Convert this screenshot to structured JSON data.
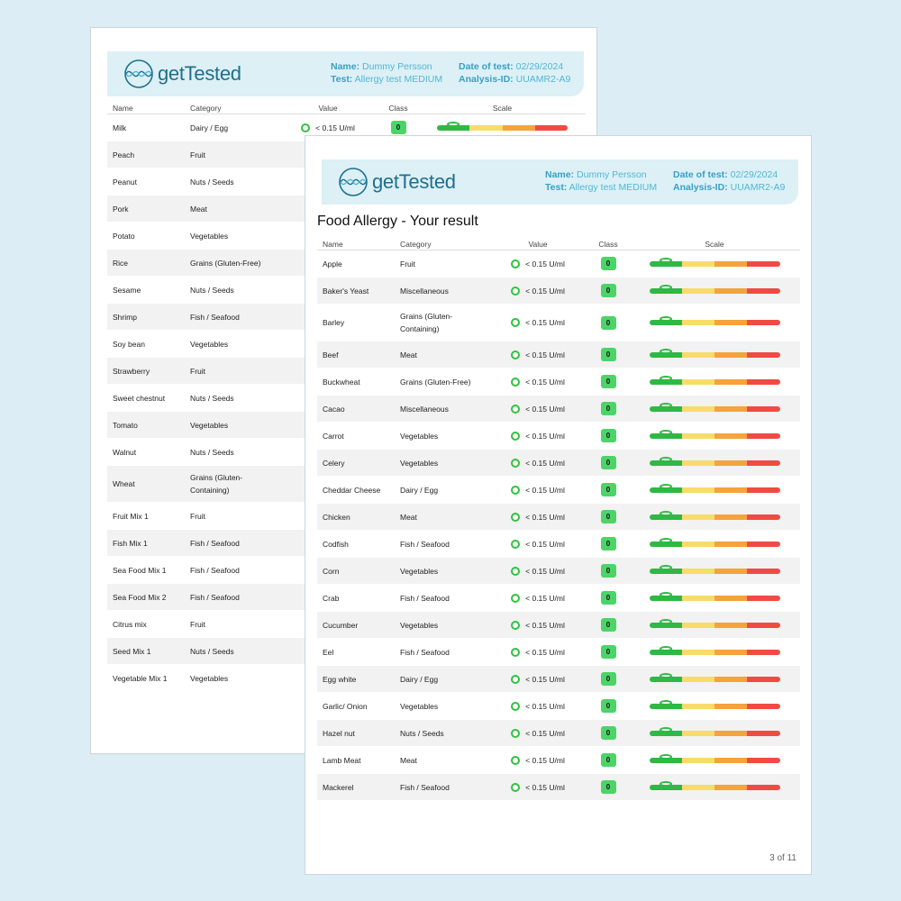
{
  "brand": "getTested",
  "header": {
    "name_label": "Name:",
    "name": "Dummy Persson",
    "test_label": "Test:",
    "test": "Allergy test MEDIUM",
    "date_label": "Date of test:",
    "date": "02/29/2024",
    "id_label": "Analysis-ID:",
    "id": "UUAMR2-A9"
  },
  "columns": [
    "Name",
    "Category",
    "Value",
    "Class",
    "Scale"
  ],
  "colors": {
    "green": "#2fc33f",
    "orange": "#f2a23a",
    "yellow": "#f7dc6a",
    "red": "#f14a44",
    "header_bg": "#dcf0f6"
  },
  "back_page": {
    "rows": [
      {
        "name": "Milk",
        "category": "Dairy / Egg",
        "status": "green",
        "value": "< 0.15 U/ml",
        "class": "0",
        "scale_level": 0
      },
      {
        "name": "Peach",
        "category": "Fruit",
        "status": "green"
      },
      {
        "name": "Peanut",
        "category": "Nuts / Seeds",
        "status": "green"
      },
      {
        "name": "Pork",
        "category": "Meat",
        "status": "green"
      },
      {
        "name": "Potato",
        "category": "Vegetables",
        "status": "green"
      },
      {
        "name": "Rice",
        "category": "Grains (Gluten-Free)",
        "status": "green"
      },
      {
        "name": "Sesame",
        "category": "Nuts / Seeds",
        "status": "green"
      },
      {
        "name": "Shrimp",
        "category": "Fish / Seafood",
        "status": "green"
      },
      {
        "name": "Soy bean",
        "category": "Vegetables",
        "status": "green"
      },
      {
        "name": "Strawberry",
        "category": "Fruit",
        "status": "green"
      },
      {
        "name": "Sweet chestnut",
        "category": "Nuts / Seeds",
        "status": "green"
      },
      {
        "name": "Tomato",
        "category": "Vegetables",
        "status": "orange"
      },
      {
        "name": "Walnut",
        "category": "Nuts / Seeds",
        "status": "green"
      },
      {
        "name": "Wheat",
        "category": "Grains (Gluten-Containing)",
        "status": "green"
      },
      {
        "name": "Fruit Mix 1",
        "category": "Fruit",
        "status": "green"
      },
      {
        "name": "Fish Mix 1",
        "category": "Fish / Seafood",
        "status": "green"
      },
      {
        "name": "Sea Food Mix 1",
        "category": "Fish / Seafood",
        "status": "green"
      },
      {
        "name": "Sea Food Mix 2",
        "category": "Fish / Seafood",
        "status": "green"
      },
      {
        "name": "Citrus mix",
        "category": "Fruit",
        "status": "green"
      },
      {
        "name": "Seed Mix 1",
        "category": "Nuts / Seeds",
        "status": "green"
      },
      {
        "name": "Vegetable Mix 1",
        "category": "Vegetables",
        "status": "green"
      }
    ]
  },
  "front_page": {
    "title": "Food Allergy - Your result",
    "page_number": "3 of 11",
    "rows": [
      {
        "name": "Apple",
        "category": "Fruit",
        "status": "green",
        "value": "< 0.15 U/ml",
        "class": "0",
        "scale_level": 0
      },
      {
        "name": "Baker's Yeast",
        "category": "Miscellaneous",
        "status": "green",
        "value": "< 0.15 U/ml",
        "class": "0",
        "scale_level": 0
      },
      {
        "name": "Barley",
        "category": "Grains (Gluten-Containing)",
        "status": "green",
        "value": "< 0.15 U/ml",
        "class": "0",
        "scale_level": 0
      },
      {
        "name": "Beef",
        "category": "Meat",
        "status": "green",
        "value": "< 0.15 U/ml",
        "class": "0",
        "scale_level": 0
      },
      {
        "name": "Buckwheat",
        "category": "Grains (Gluten-Free)",
        "status": "green",
        "value": "< 0.15 U/ml",
        "class": "0",
        "scale_level": 0
      },
      {
        "name": "Cacao",
        "category": "Miscellaneous",
        "status": "green",
        "value": "< 0.15 U/ml",
        "class": "0",
        "scale_level": 0
      },
      {
        "name": "Carrot",
        "category": "Vegetables",
        "status": "green",
        "value": "< 0.15 U/ml",
        "class": "0",
        "scale_level": 0
      },
      {
        "name": "Celery",
        "category": "Vegetables",
        "status": "green",
        "value": "< 0.15 U/ml",
        "class": "0",
        "scale_level": 0
      },
      {
        "name": "Cheddar Cheese",
        "category": "Dairy / Egg",
        "status": "green",
        "value": "< 0.15 U/ml",
        "class": "0",
        "scale_level": 0
      },
      {
        "name": "Chicken",
        "category": "Meat",
        "status": "green",
        "value": "< 0.15 U/ml",
        "class": "0",
        "scale_level": 0
      },
      {
        "name": "Codfish",
        "category": "Fish / Seafood",
        "status": "green",
        "value": "< 0.15 U/ml",
        "class": "0",
        "scale_level": 0
      },
      {
        "name": "Corn",
        "category": "Vegetables",
        "status": "green",
        "value": "< 0.15 U/ml",
        "class": "0",
        "scale_level": 0
      },
      {
        "name": "Crab",
        "category": "Fish / Seafood",
        "status": "green",
        "value": "< 0.15 U/ml",
        "class": "0",
        "scale_level": 0
      },
      {
        "name": "Cucumber",
        "category": "Vegetables",
        "status": "green",
        "value": "< 0.15 U/ml",
        "class": "0",
        "scale_level": 0
      },
      {
        "name": "Eel",
        "category": "Fish / Seafood",
        "status": "green",
        "value": "< 0.15 U/ml",
        "class": "0",
        "scale_level": 0
      },
      {
        "name": "Egg white",
        "category": "Dairy / Egg",
        "status": "green",
        "value": "< 0.15 U/ml",
        "class": "0",
        "scale_level": 0
      },
      {
        "name": "Garlic/ Onion",
        "category": "Vegetables",
        "status": "green",
        "value": "< 0.15 U/ml",
        "class": "0",
        "scale_level": 0
      },
      {
        "name": "Hazel nut",
        "category": "Nuts / Seeds",
        "status": "green",
        "value": "< 0.15 U/ml",
        "class": "0",
        "scale_level": 0
      },
      {
        "name": "Lamb Meat",
        "category": "Meat",
        "status": "green",
        "value": "< 0.15 U/ml",
        "class": "0",
        "scale_level": 0
      },
      {
        "name": "Mackerel",
        "category": "Fish / Seafood",
        "status": "green",
        "value": "< 0.15 U/ml",
        "class": "0",
        "scale_level": 0
      }
    ]
  }
}
